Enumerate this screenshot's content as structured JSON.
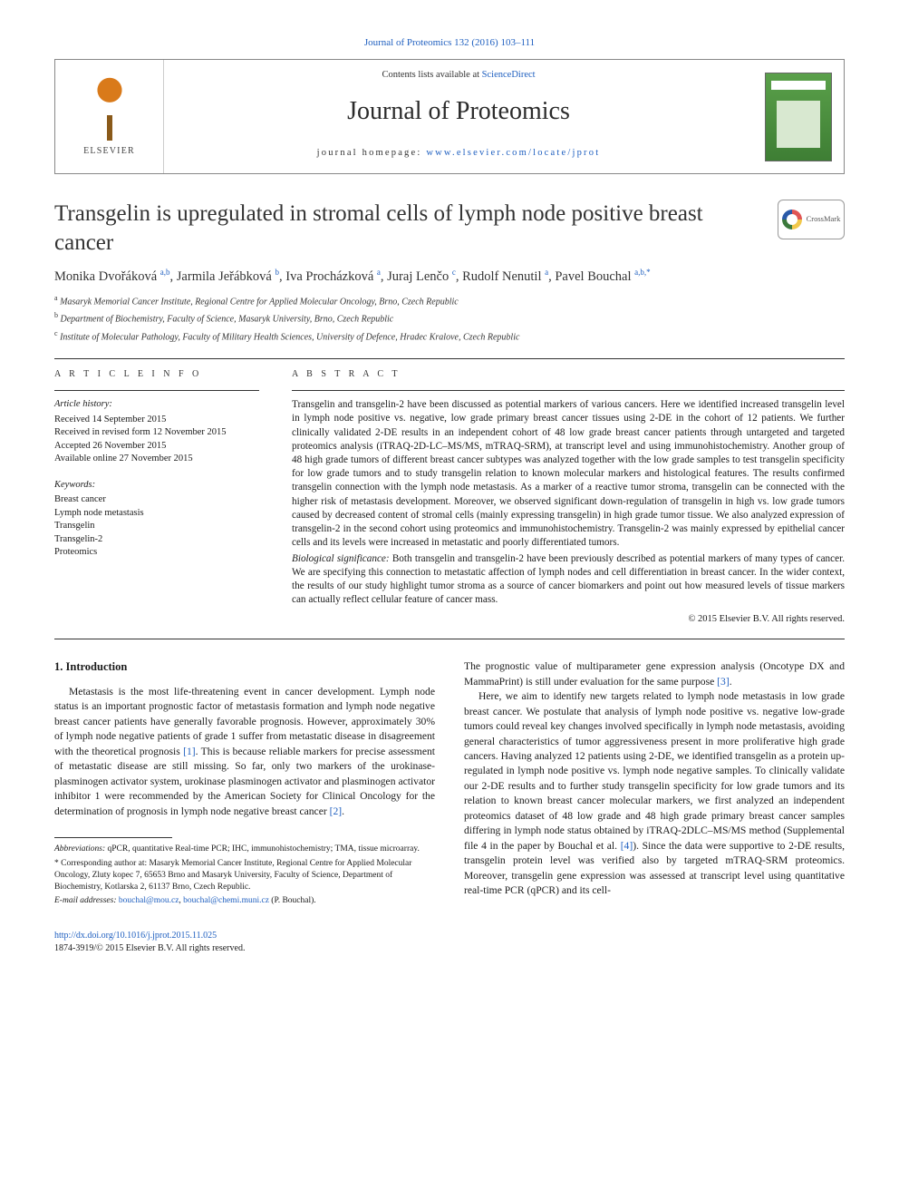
{
  "top_citation": "Journal of Proteomics 132 (2016) 103–111",
  "header": {
    "contents_prefix": "Contents lists available at ",
    "contents_link": "ScienceDirect",
    "journal_name": "Journal of Proteomics",
    "homepage_prefix": "journal homepage: ",
    "homepage_url": "www.elsevier.com/locate/jprot",
    "publisher": "ELSEVIER"
  },
  "crossmark": "CrossMark",
  "title": "Transgelin is upregulated in stromal cells of lymph node positive breast cancer",
  "authors_html": "Monika Dvořáková <sup>a,b</sup>, Jarmila Jeřábková <sup>b</sup>, Iva Procházková <sup>a</sup>, Juraj Lenčo <sup>c</sup>, Rudolf Nenutil <sup>a</sup>, Pavel Bouchal <sup>a,b,*</sup>",
  "affiliations": [
    {
      "sup": "a",
      "text": "Masaryk Memorial Cancer Institute, Regional Centre for Applied Molecular Oncology, Brno, Czech Republic"
    },
    {
      "sup": "b",
      "text": "Department of Biochemistry, Faculty of Science, Masaryk University, Brno, Czech Republic"
    },
    {
      "sup": "c",
      "text": "Institute of Molecular Pathology, Faculty of Military Health Sciences, University of Defence, Hradec Kralove, Czech Republic"
    }
  ],
  "info_heading": "A R T I C L E   I N F O",
  "abstract_heading": "A B S T R A C T",
  "history": {
    "label": "Article history:",
    "lines": [
      "Received 14 September 2015",
      "Received in revised form 12 November 2015",
      "Accepted 26 November 2015",
      "Available online 27 November 2015"
    ]
  },
  "keywords": {
    "label": "Keywords:",
    "items": [
      "Breast cancer",
      "Lymph node metastasis",
      "Transgelin",
      "Transgelin-2",
      "Proteomics"
    ]
  },
  "abstract": {
    "p1": "Transgelin and transgelin-2 have been discussed as potential markers of various cancers. Here we identified increased transgelin level in lymph node positive vs. negative, low grade primary breast cancer tissues using 2-DE in the cohort of 12 patients. We further clinically validated 2-DE results in an independent cohort of 48 low grade breast cancer patients through untargeted and targeted proteomics analysis (iTRAQ-2D-LC–MS/MS, mTRAQ-SRM), at transcript level and using immunohistochemistry. Another group of 48 high grade tumors of different breast cancer subtypes was analyzed together with the low grade samples to test transgelin specificity for low grade tumors and to study transgelin relation to known molecular markers and histological features. The results confirmed transgelin connection with the lymph node metastasis. As a marker of a reactive tumor stroma, transgelin can be connected with the higher risk of metastasis development. Moreover, we observed significant down-regulation of transgelin in high vs. low grade tumors caused by decreased content of stromal cells (mainly expressing transgelin) in high grade tumor tissue. We also analyzed expression of transgelin-2 in the second cohort using proteomics and immunohistochemistry. Transgelin-2 was mainly expressed by epithelial cancer cells and its levels were increased in metastatic and poorly differentiated tumors.",
    "sig_label": "Biological significance:",
    "p2": " Both transgelin and transgelin-2 have been previously described as potential markers of many types of cancer. We are specifying this connection to metastatic affection of lymph nodes and cell differentiation in breast cancer. In the wider context, the results of our study highlight tumor stroma as a source of cancer biomarkers and point out how measured levels of tissue markers can actually reflect cellular feature of cancer mass.",
    "copyright": "© 2015 Elsevier B.V. All rights reserved."
  },
  "body": {
    "intro_heading": "1. Introduction",
    "left_p1": "Metastasis is the most life-threatening event in cancer development. Lymph node status is an important prognostic factor of metastasis formation and lymph node negative breast cancer patients have generally favorable prognosis. However, approximately 30% of lymph node negative patients of grade 1 suffer from metastatic disease in disagreement with the theoretical prognosis ",
    "left_cite1": "[1]",
    "left_p1b": ". This is because reliable markers for precise assessment of metastatic disease are still missing. So far, only two markers of the urokinase-plasminogen activator system, urokinase plasminogen activator and plasminogen activator inhibitor 1 were recommended by the American Society for Clinical Oncology for the determination of prognosis in lymph node negative breast cancer ",
    "left_cite2": "[2]",
    "left_p1c": ".",
    "right_p1": "The prognostic value of multiparameter gene expression analysis (Oncotype DX and MammaPrint) is still under evaluation for the same purpose ",
    "right_cite1": "[3]",
    "right_p1b": ".",
    "right_p2": "Here, we aim to identify new targets related to lymph node metastasis in low grade breast cancer. We postulate that analysis of lymph node positive vs. negative low-grade tumors could reveal key changes involved specifically in lymph node metastasis, avoiding general characteristics of tumor aggressiveness present in more proliferative high grade cancers. Having analyzed 12 patients using 2-DE, we identified transgelin as a protein up-regulated in lymph node positive vs. lymph node negative samples. To clinically validate our 2-DE results and to further study transgelin specificity for low grade tumors and its relation to known breast cancer molecular markers, we first analyzed an independent proteomics dataset of 48 low grade and 48 high grade primary breast cancer samples differing in lymph node status obtained by iTRAQ-2DLC–MS/MS method (Supplemental file 4 in the paper by Bouchal et al. ",
    "right_cite2": "[4]",
    "right_p2b": "). Since the data were supportive to 2-DE results, transgelin protein level was verified also by targeted mTRAQ-SRM proteomics. Moreover, transgelin gene expression was assessed at transcript level using quantitative real-time PCR (qPCR) and its cell-"
  },
  "footnotes": {
    "abbrev_label": "Abbreviations:",
    "abbrev_text": " qPCR, quantitative Real-time PCR; IHC, immunohistochemistry; TMA, tissue microarray.",
    "corr_marker": "*",
    "corr_text": " Corresponding author at: Masaryk Memorial Cancer Institute, Regional Centre for Applied Molecular Oncology, Zluty kopec 7, 65653 Brno and Masaryk University, Faculty of Science, Department of Biochemistry, Kotlarska 2, 61137 Brno, Czech Republic.",
    "email_label": "E-mail addresses:",
    "email1": "bouchal@mou.cz",
    "email_sep": ", ",
    "email2": "bouchal@chemi.muni.cz",
    "email_suffix": " (P. Bouchal)."
  },
  "bottom": {
    "doi": "http://dx.doi.org/10.1016/j.jprot.2015.11.025",
    "issn_line": "1874-3919/© 2015 Elsevier B.V. All rights reserved."
  },
  "colors": {
    "link": "#2060c0",
    "text": "#1a1a1a",
    "rule": "#333333"
  }
}
